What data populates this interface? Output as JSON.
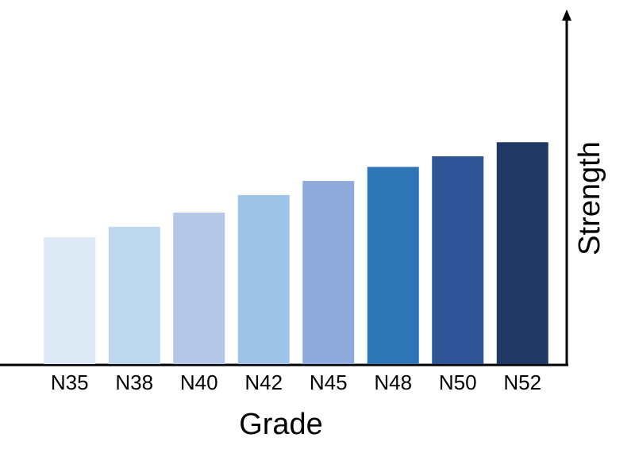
{
  "chart_data": {
    "type": "bar",
    "x_label": "Grade",
    "y_label": "Strength",
    "categories": [
      "N35",
      "N38",
      "N40",
      "N42",
      "N45",
      "N48",
      "N50",
      "N52"
    ],
    "values": [
      36,
      39,
      43,
      48,
      52,
      56,
      59,
      63
    ],
    "colors": [
      "#dde9f5",
      "#bdd7ee",
      "#b4c7e7",
      "#9dc3e6",
      "#8faadc",
      "#2e75b6",
      "#2f5597",
      "#203864"
    ],
    "ylim": [
      0,
      100
    ]
  }
}
